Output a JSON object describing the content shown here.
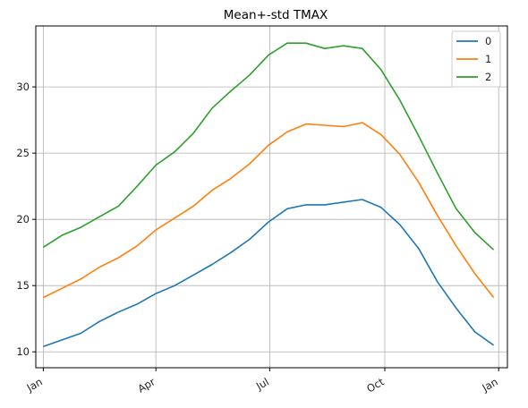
{
  "chart_data": {
    "type": "line",
    "title": "Mean+-std   TMAX",
    "xlabel": "",
    "ylabel": "",
    "x_tick_labels": [
      "Jan",
      "Apr",
      "Jul",
      "Oct",
      "Jan"
    ],
    "y_ticks": [
      10,
      15,
      20,
      25,
      30
    ],
    "y_tick_labels": [
      "10",
      "15",
      "20",
      "25",
      "30"
    ],
    "xlim_days": [
      -6,
      371
    ],
    "ylim": [
      8.8,
      34.6
    ],
    "grid": true,
    "legend_position": "top-right",
    "series": [
      {
        "name": "0",
        "color": "#1f77b4",
        "x_days": [
          0,
          15,
          30,
          45,
          60,
          75,
          90,
          105,
          120,
          135,
          150,
          165,
          180,
          195,
          210,
          225,
          240,
          255,
          270,
          285,
          300,
          315,
          330,
          345,
          360
        ],
        "values": [
          10.4,
          10.9,
          11.4,
          12.3,
          13.0,
          13.6,
          14.4,
          15.0,
          15.8,
          16.6,
          17.5,
          18.5,
          19.8,
          20.8,
          21.1,
          21.1,
          21.3,
          21.5,
          20.9,
          19.6,
          17.8,
          15.3,
          13.3,
          11.5,
          10.5
        ]
      },
      {
        "name": "1",
        "color": "#ff7f0e",
        "x_days": [
          0,
          15,
          30,
          45,
          60,
          75,
          90,
          105,
          120,
          135,
          150,
          165,
          180,
          195,
          210,
          225,
          240,
          255,
          270,
          285,
          300,
          315,
          330,
          345,
          360
        ],
        "values": [
          14.1,
          14.8,
          15.5,
          16.4,
          17.1,
          18.0,
          19.2,
          20.1,
          21.0,
          22.2,
          23.1,
          24.2,
          25.6,
          26.6,
          27.2,
          27.1,
          27.0,
          27.3,
          26.4,
          24.9,
          22.8,
          20.3,
          18.0,
          15.9,
          14.1
        ]
      },
      {
        "name": "2",
        "color": "#2ca02c",
        "x_days": [
          0,
          15,
          30,
          45,
          60,
          75,
          90,
          105,
          120,
          135,
          150,
          165,
          180,
          195,
          210,
          225,
          240,
          255,
          270,
          285,
          300,
          315,
          330,
          345,
          360
        ],
        "values": [
          17.9,
          18.8,
          19.4,
          20.2,
          21.0,
          22.5,
          24.1,
          25.1,
          26.5,
          28.4,
          29.7,
          30.9,
          32.4,
          33.3,
          33.3,
          32.9,
          33.1,
          32.9,
          31.3,
          29.0,
          26.3,
          23.5,
          20.8,
          19.0,
          17.7
        ]
      }
    ]
  }
}
